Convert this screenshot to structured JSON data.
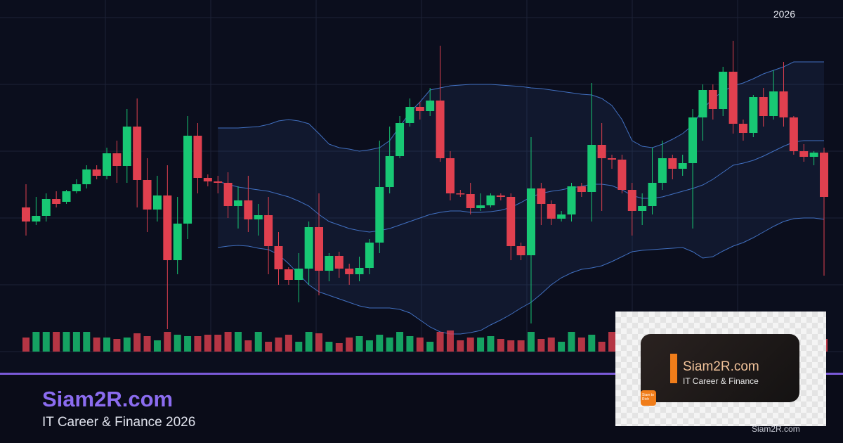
{
  "chart_data": {
    "type": "candlestick",
    "open": [
      205,
      185,
      193,
      217,
      213,
      228,
      238,
      259,
      250,
      282,
      264,
      320,
      244,
      202,
      222,
      130,
      182,
      307,
      247,
      242,
      240,
      207,
      215,
      188,
      194,
      150,
      117,
      102,
      118,
      177,
      115,
      136,
      118,
      110,
      119,
      155,
      234,
      278,
      325,
      348,
      342,
      357,
      275,
      225,
      224,
      204,
      208,
      222,
      220,
      150,
      137,
      232,
      210,
      189,
      195,
      235,
      227,
      294,
      275,
      273,
      230,
      200,
      207,
      240,
      275,
      260,
      268,
      333,
      372,
      345,
      398,
      324,
      311,
      362,
      335,
      370,
      333,
      285,
      277,
      283
    ],
    "high": [
      238,
      220,
      225,
      228,
      230,
      245,
      265,
      265,
      290,
      300,
      345,
      360,
      275,
      250,
      265,
      220,
      335,
      325,
      252,
      250,
      255,
      235,
      250,
      210,
      220,
      170,
      120,
      140,
      185,
      225,
      140,
      142,
      125,
      135,
      160,
      300,
      320,
      335,
      360,
      355,
      375,
      435,
      285,
      230,
      240,
      225,
      225,
      225,
      225,
      155,
      305,
      240,
      215,
      200,
      240,
      240,
      382,
      325,
      280,
      280,
      240,
      225,
      290,
      300,
      280,
      280,
      345,
      380,
      380,
      405,
      442,
      330,
      365,
      375,
      400,
      412,
      335,
      295,
      285,
      290
    ],
    "low": [
      165,
      180,
      185,
      205,
      210,
      225,
      232,
      245,
      245,
      240,
      240,
      205,
      170,
      185,
      32,
      110,
      160,
      225,
      235,
      225,
      190,
      175,
      170,
      165,
      110,
      95,
      95,
      70,
      95,
      80,
      100,
      105,
      95,
      100,
      110,
      140,
      225,
      275,
      320,
      330,
      335,
      270,
      215,
      220,
      195,
      200,
      205,
      215,
      130,
      130,
      40,
      180,
      180,
      185,
      185,
      220,
      185,
      200,
      260,
      225,
      165,
      180,
      195,
      230,
      245,
      250,
      175,
      300,
      330,
      335,
      310,
      300,
      305,
      320,
      330,
      320,
      280,
      270,
      265,
      108
    ],
    "close": [
      185,
      193,
      217,
      210,
      228,
      238,
      259,
      250,
      282,
      264,
      320,
      244,
      202,
      222,
      130,
      182,
      307,
      247,
      242,
      240,
      207,
      215,
      188,
      194,
      150,
      117,
      102,
      118,
      177,
      115,
      136,
      118,
      110,
      119,
      155,
      234,
      278,
      325,
      348,
      342,
      357,
      275,
      225,
      224,
      204,
      208,
      222,
      220,
      150,
      137,
      232,
      210,
      189,
      195,
      235,
      227,
      294,
      275,
      273,
      230,
      200,
      207,
      240,
      275,
      260,
      268,
      333,
      372,
      345,
      398,
      324,
      311,
      362,
      335,
      370,
      333,
      285,
      277,
      283,
      220
    ],
    "volume": [
      20,
      28,
      28,
      28,
      28,
      28,
      28,
      20,
      20,
      18,
      20,
      26,
      22,
      16,
      28,
      24,
      22,
      22,
      24,
      24,
      28,
      28,
      16,
      28,
      14,
      20,
      24,
      14,
      28,
      26,
      14,
      12,
      20,
      22,
      16,
      24,
      20,
      28,
      22,
      20,
      14,
      28,
      30,
      16,
      20,
      20,
      22,
      18,
      16,
      16,
      28,
      18,
      20,
      14,
      28,
      20,
      24,
      14,
      28,
      28,
      16,
      24,
      26,
      22,
      24,
      20,
      22,
      14,
      24,
      20,
      26,
      22,
      18,
      22,
      28,
      24,
      20,
      22,
      14,
      18
    ],
    "bands": {
      "upper": [
        null,
        null,
        null,
        null,
        null,
        null,
        null,
        null,
        null,
        null,
        null,
        null,
        null,
        null,
        null,
        null,
        null,
        null,
        null,
        318,
        318,
        318,
        319,
        320,
        323,
        328,
        330,
        328,
        324,
        310,
        295,
        290,
        288,
        285,
        287,
        290,
        300,
        320,
        340,
        355,
        372,
        375,
        378,
        379,
        380,
        380,
        380,
        379,
        378,
        377,
        375,
        374,
        372,
        370,
        368,
        366,
        365,
        360,
        350,
        330,
        300,
        292,
        290,
        295,
        302,
        310,
        322,
        345,
        360,
        370,
        378,
        382,
        388,
        395,
        400,
        405,
        412,
        412,
        412,
        412
      ],
      "middle": [
        null,
        null,
        null,
        null,
        null,
        null,
        null,
        null,
        null,
        null,
        null,
        null,
        null,
        null,
        null,
        null,
        null,
        null,
        null,
        242,
        238,
        234,
        232,
        230,
        228,
        224,
        220,
        214,
        207,
        195,
        185,
        180,
        175,
        172,
        170,
        172,
        175,
        180,
        185,
        190,
        195,
        198,
        200,
        200,
        198,
        198,
        199,
        201,
        205,
        212,
        220,
        225,
        228,
        230,
        233,
        235,
        238,
        238,
        236,
        230,
        222,
        218,
        218,
        220,
        224,
        228,
        232,
        237,
        245,
        255,
        265,
        268,
        272,
        278,
        285,
        292,
        298,
        300,
        300,
        300
      ],
      "lower": [
        null,
        null,
        null,
        null,
        null,
        null,
        null,
        null,
        null,
        null,
        null,
        null,
        null,
        null,
        null,
        null,
        null,
        null,
        null,
        148,
        150,
        151,
        150,
        147,
        145,
        138,
        125,
        110,
        95,
        85,
        80,
        75,
        70,
        65,
        62,
        62,
        62,
        60,
        55,
        45,
        35,
        28,
        25,
        25,
        27,
        30,
        38,
        45,
        53,
        62,
        70,
        82,
        95,
        105,
        112,
        117,
        119,
        122,
        128,
        135,
        142,
        144,
        145,
        146,
        147,
        148,
        142,
        133,
        135,
        143,
        150,
        155,
        162,
        170,
        178,
        185,
        189,
        190,
        190,
        188
      ]
    },
    "ylim": [
      0,
      500
    ],
    "vlim": [
      0,
      40
    ],
    "up_color": "#18c874",
    "down_color": "#e0404f",
    "band_color": "#4a80dc",
    "grid": true
  },
  "year_label": "2026",
  "brand": "Siam2R.com",
  "tagline": "IT Career & Finance 2026",
  "card": {
    "name": "Siam2R.com",
    "subtitle": "IT Career & Finance",
    "logo": "Siam to Rich"
  },
  "watermark": "Siam2R.com"
}
